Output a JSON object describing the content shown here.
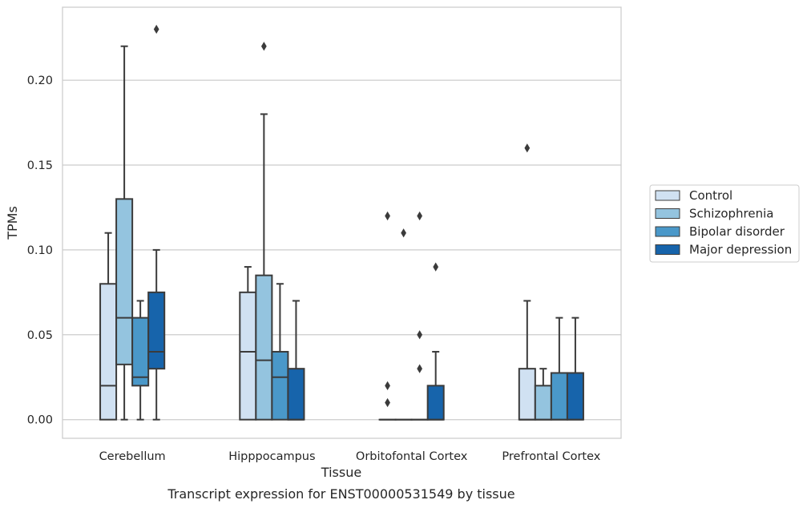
{
  "chart_data": {
    "type": "box",
    "caption": "Transcript expression for ENST00000531549 by tissue",
    "xlabel": "Tissue",
    "ylabel": "TPMs",
    "ylim": [
      -0.011,
      0.243
    ],
    "yticks": [
      0.0,
      0.05,
      0.1,
      0.15,
      0.2
    ],
    "ytick_labels": [
      "0.00",
      "0.05",
      "0.10",
      "0.15",
      "0.20"
    ],
    "grid": true,
    "legend_position": "right",
    "categories": [
      "Cerebellum",
      "Hipppocampus",
      "Orbitofontal Cortex",
      "Prefrontal Cortex"
    ],
    "series": [
      {
        "name": "Control",
        "color": "#d0e1f2",
        "boxes": [
          {
            "whislo": 0.0,
            "q1": 0.0,
            "med": 0.02,
            "q3": 0.08,
            "whishi": 0.11,
            "fliers": []
          },
          {
            "whislo": 0.0,
            "q1": 0.0,
            "med": 0.04,
            "q3": 0.075,
            "whishi": 0.09,
            "fliers": []
          },
          {
            "whislo": 0.0,
            "q1": 0.0,
            "med": 0.0,
            "q3": 0.0,
            "whishi": 0.0,
            "fliers": [
              0.01,
              0.02,
              0.12
            ]
          },
          {
            "whislo": 0.0,
            "q1": 0.0,
            "med": 0.0,
            "q3": 0.03,
            "whishi": 0.07,
            "fliers": [
              0.16
            ]
          }
        ]
      },
      {
        "name": "Schizophrenia",
        "color": "#94c4df",
        "boxes": [
          {
            "whislo": 0.0,
            "q1": 0.0325,
            "med": 0.06,
            "q3": 0.13,
            "whishi": 0.22,
            "fliers": []
          },
          {
            "whislo": 0.0,
            "q1": 0.0,
            "med": 0.035,
            "q3": 0.085,
            "whishi": 0.18,
            "fliers": [
              0.22
            ]
          },
          {
            "whislo": 0.0,
            "q1": 0.0,
            "med": 0.0,
            "q3": 0.0,
            "whishi": 0.0,
            "fliers": [
              0.11
            ]
          },
          {
            "whislo": 0.0,
            "q1": 0.0,
            "med": 0.0,
            "q3": 0.02,
            "whishi": 0.03,
            "fliers": []
          }
        ]
      },
      {
        "name": "Bipolar disorder",
        "color": "#4a98c9",
        "boxes": [
          {
            "whislo": 0.0,
            "q1": 0.02,
            "med": 0.025,
            "q3": 0.06,
            "whishi": 0.07,
            "fliers": []
          },
          {
            "whislo": 0.0,
            "q1": 0.0,
            "med": 0.025,
            "q3": 0.04,
            "whishi": 0.08,
            "fliers": []
          },
          {
            "whislo": 0.0,
            "q1": 0.0,
            "med": 0.0,
            "q3": 0.0,
            "whishi": 0.0,
            "fliers": [
              0.03,
              0.05,
              0.12
            ]
          },
          {
            "whislo": 0.0,
            "q1": 0.0,
            "med": 0.0,
            "q3": 0.0275,
            "whishi": 0.06,
            "fliers": []
          }
        ]
      },
      {
        "name": "Major depression",
        "color": "#1764ab",
        "boxes": [
          {
            "whislo": 0.0,
            "q1": 0.03,
            "med": 0.04,
            "q3": 0.075,
            "whishi": 0.1,
            "fliers": [
              0.23
            ]
          },
          {
            "whislo": 0.0,
            "q1": 0.0,
            "med": 0.0,
            "q3": 0.03,
            "whishi": 0.07,
            "fliers": []
          },
          {
            "whislo": 0.0,
            "q1": 0.0,
            "med": 0.0,
            "q3": 0.02,
            "whishi": 0.04,
            "fliers": [
              0.09
            ]
          },
          {
            "whislo": 0.0,
            "q1": 0.0,
            "med": 0.0,
            "q3": 0.0275,
            "whishi": 0.06,
            "fliers": []
          }
        ]
      }
    ]
  }
}
